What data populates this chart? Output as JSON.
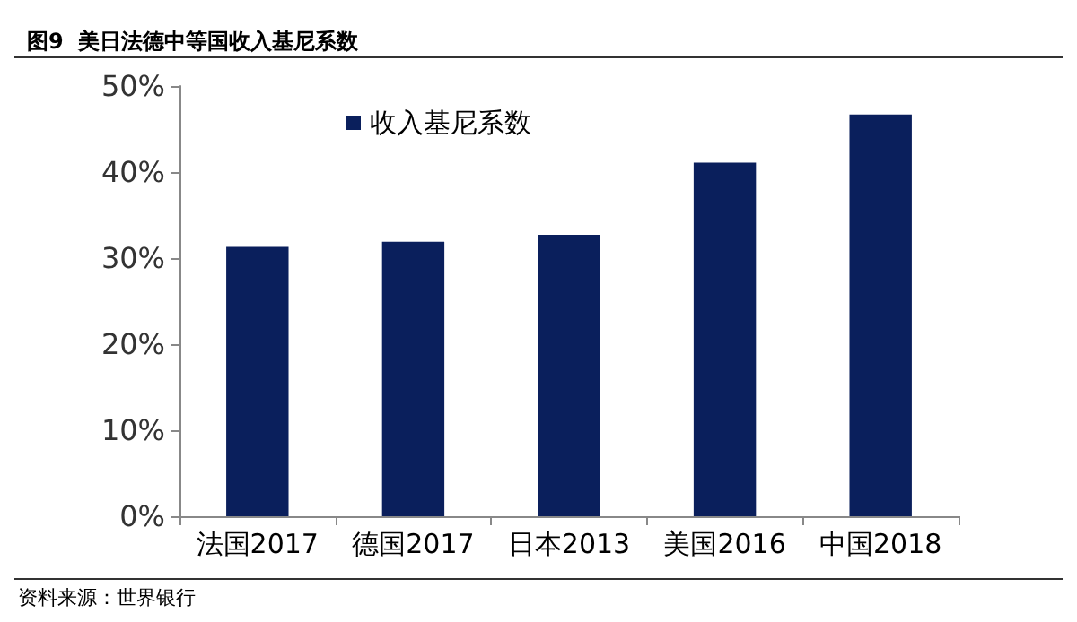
{
  "chart_data": {
    "type": "bar",
    "title": "图9  美日法德中等国收入基尼系数",
    "categories": [
      "法国2017",
      "德国2017",
      "日本2013",
      "美国2016",
      "中国2018"
    ],
    "series": [
      {
        "name": "收入基尼系数",
        "color": "#0a1f5c",
        "values": [
          31.3,
          31.9,
          32.7,
          41.1,
          46.7
        ]
      }
    ],
    "ylim": [
      0,
      50
    ],
    "yticks": [
      {
        "value": 0,
        "label": "0%"
      },
      {
        "value": 10,
        "label": "10%"
      },
      {
        "value": 20,
        "label": "20%"
      },
      {
        "value": 30,
        "label": "30%"
      },
      {
        "value": 40,
        "label": "40%"
      },
      {
        "value": 50,
        "label": "50%"
      }
    ],
    "grid": false,
    "legend": "top left",
    "annotations": [
      "资料来源：世界银行"
    ]
  }
}
